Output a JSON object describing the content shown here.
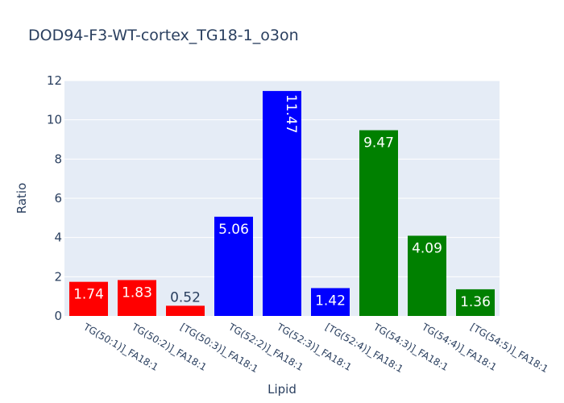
{
  "chart_data": {
    "type": "bar",
    "title": "DOD94-F3-WT-cortex_TG18-1_o3on",
    "xlabel": "Lipid",
    "ylabel": "Ratio",
    "ylim": [
      0,
      12
    ],
    "yticks": [
      0,
      2,
      4,
      6,
      8,
      10,
      12
    ],
    "grid": true,
    "categories": [
      "TG(50:1)]_FA18:1",
      "TG(50:2)]_FA18:1",
      "[TG(50:3)]_FA18:1",
      "TG(52:2)]_FA18:1",
      "TG(52:3)]_FA18:1",
      "[TG(52:4)]_FA18:1",
      "TG(54:3)]_FA18:1",
      "TG(54:4)]_FA18:1",
      "[TG(54:5)]_FA18:1"
    ],
    "values": [
      1.74,
      1.83,
      0.52,
      5.06,
      11.47,
      1.42,
      9.47,
      4.09,
      1.36
    ],
    "value_labels": [
      "1.74",
      "1.83",
      "0.52",
      "5.06",
      "11.47",
      "1.42",
      "9.47",
      "4.09",
      "1.36"
    ],
    "colors": [
      "#ff0000",
      "#ff0000",
      "#ff0000",
      "#0000ff",
      "#0000ff",
      "#0000ff",
      "#008000",
      "#008000",
      "#008000"
    ]
  }
}
